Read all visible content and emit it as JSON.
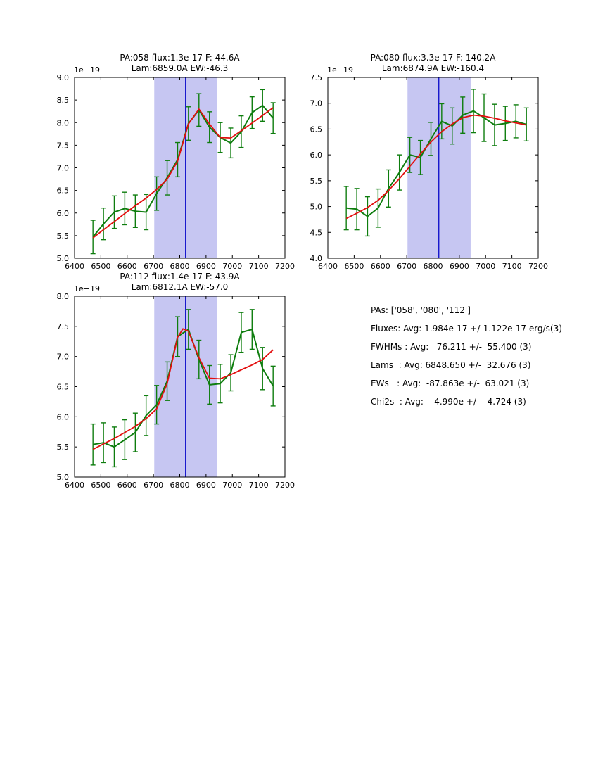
{
  "figure": {
    "colors": {
      "data": "#0e7d0e",
      "fit": "#e30e0e",
      "center_line": "#1515cc",
      "band": "#c6c6f2",
      "axis": "#000000",
      "background": "#ffffff"
    }
  },
  "stats_panel": {
    "lines": [
      "PAs: ['058', '080', '112']",
      "Fluxes: Avg: 1.984e-17 +/-1.122e-17 erg/s(3)",
      "FWHMs : Avg:   76.211 +/-  55.400 (3)",
      "Lams  : Avg: 6848.650 +/-  32.676 (3)",
      "EWs   : Avg:  -87.863e +/-  63.021 (3)",
      "Chi2s  : Avg:    4.990e +/-   4.724 (3)"
    ]
  },
  "chart_data": [
    {
      "id": "pa058",
      "type": "line",
      "title_line1": "PA:058 flux:1.3e-17 F: 44.6A",
      "title_line2": "Lam:6859.0A EW:-46.3",
      "offset_label": "1e−19",
      "xlim": [
        6400,
        7200
      ],
      "ylim": [
        5.0,
        9.0
      ],
      "xticks": [
        6400,
        6500,
        6600,
        6700,
        6800,
        6900,
        7000,
        7100,
        7200
      ],
      "yticks": [
        5.0,
        5.5,
        6.0,
        6.5,
        7.0,
        7.5,
        8.0,
        8.5,
        9.0
      ],
      "band": [
        6703,
        6943
      ],
      "vline": 6822,
      "grid": false,
      "legend": false,
      "x": [
        6470,
        6510,
        6551,
        6591,
        6631,
        6672,
        6712,
        6752,
        6792,
        6833,
        6873,
        6913,
        6954,
        6994,
        7034,
        7075,
        7115,
        7155
      ],
      "series": [
        {
          "name": "spectrum",
          "color_key": "data",
          "values": [
            5.47,
            5.76,
            6.02,
            6.1,
            6.04,
            6.02,
            6.43,
            6.78,
            7.18,
            7.98,
            8.28,
            7.9,
            7.67,
            7.55,
            7.8,
            8.22,
            8.38,
            8.1
          ],
          "errors": [
            0.37,
            0.35,
            0.36,
            0.36,
            0.36,
            0.39,
            0.37,
            0.38,
            0.38,
            0.37,
            0.36,
            0.34,
            0.33,
            0.33,
            0.35,
            0.35,
            0.35,
            0.34
          ]
        },
        {
          "name": "fit",
          "color_key": "fit",
          "values": [
            5.45,
            5.63,
            5.81,
            5.99,
            6.16,
            6.33,
            6.52,
            6.75,
            7.15,
            7.97,
            8.3,
            7.97,
            7.67,
            7.66,
            7.82,
            7.99,
            8.16,
            8.33
          ]
        }
      ]
    },
    {
      "id": "pa080",
      "type": "line",
      "title_line1": "PA:080 flux:3.3e-17 F: 140.2A",
      "title_line2": "Lam:6874.9A EW:-160.4",
      "offset_label": "1e−19",
      "xlim": [
        6400,
        7200
      ],
      "ylim": [
        4.0,
        7.5
      ],
      "xticks": [
        6400,
        6500,
        6600,
        6700,
        6800,
        6900,
        7000,
        7100,
        7200
      ],
      "yticks": [
        4.0,
        4.5,
        5.0,
        5.5,
        6.0,
        6.5,
        7.0,
        7.5
      ],
      "band": [
        6703,
        6943
      ],
      "vline": 6822,
      "grid": false,
      "legend": false,
      "x": [
        6470,
        6510,
        6551,
        6591,
        6631,
        6672,
        6712,
        6752,
        6792,
        6833,
        6873,
        6913,
        6954,
        6994,
        7034,
        7075,
        7115,
        7155
      ],
      "series": [
        {
          "name": "spectrum",
          "color_key": "data",
          "values": [
            4.97,
            4.95,
            4.81,
            4.97,
            5.35,
            5.66,
            6.0,
            5.95,
            6.31,
            6.65,
            6.56,
            6.77,
            6.85,
            6.72,
            6.58,
            6.61,
            6.65,
            6.59
          ],
          "errors": [
            0.42,
            0.4,
            0.38,
            0.37,
            0.36,
            0.34,
            0.34,
            0.33,
            0.32,
            0.34,
            0.35,
            0.35,
            0.42,
            0.46,
            0.4,
            0.33,
            0.32,
            0.32
          ]
        },
        {
          "name": "fit",
          "color_key": "fit",
          "values": [
            4.77,
            4.87,
            4.98,
            5.12,
            5.31,
            5.54,
            5.78,
            6.02,
            6.25,
            6.45,
            6.6,
            6.72,
            6.77,
            6.75,
            6.71,
            6.66,
            6.62,
            6.58
          ]
        }
      ]
    },
    {
      "id": "pa112",
      "type": "line",
      "title_line1": "PA:112 flux:1.4e-17 F: 43.9A",
      "title_line2": "Lam:6812.1A EW:-57.0",
      "offset_label": "1e−19",
      "xlim": [
        6400,
        7200
      ],
      "ylim": [
        5.0,
        8.0
      ],
      "xticks": [
        6400,
        6500,
        6600,
        6700,
        6800,
        6900,
        7000,
        7100,
        7200
      ],
      "yticks": [
        5.0,
        5.5,
        6.0,
        6.5,
        7.0,
        7.5,
        8.0
      ],
      "band": [
        6703,
        6943
      ],
      "vline": 6822,
      "grid": false,
      "legend": false,
      "x": [
        6470,
        6510,
        6551,
        6591,
        6631,
        6672,
        6712,
        6752,
        6792,
        6833,
        6873,
        6913,
        6954,
        6994,
        7034,
        7075,
        7115,
        7155
      ],
      "series": [
        {
          "name": "spectrum",
          "color_key": "data",
          "values": [
            5.54,
            5.57,
            5.5,
            5.62,
            5.74,
            6.02,
            6.2,
            6.59,
            7.33,
            7.45,
            6.95,
            6.53,
            6.55,
            6.73,
            7.4,
            7.45,
            6.8,
            6.51
          ],
          "errors": [
            0.34,
            0.33,
            0.33,
            0.33,
            0.32,
            0.33,
            0.32,
            0.32,
            0.33,
            0.33,
            0.32,
            0.32,
            0.32,
            0.3,
            0.33,
            0.33,
            0.35,
            0.33
          ]
        },
        {
          "name": "fit",
          "color_key": "fit",
          "x": [
            6470,
            6510,
            6551,
            6591,
            6631,
            6672,
            6712,
            6752,
            6792,
            6812,
            6833,
            6873,
            6913,
            6954,
            6994,
            7034,
            7075,
            7115,
            7155
          ],
          "values": [
            5.46,
            5.55,
            5.64,
            5.74,
            5.84,
            5.97,
            6.13,
            6.55,
            7.32,
            7.46,
            7.42,
            6.98,
            6.64,
            6.63,
            6.7,
            6.78,
            6.86,
            6.95,
            7.11
          ]
        }
      ]
    }
  ]
}
